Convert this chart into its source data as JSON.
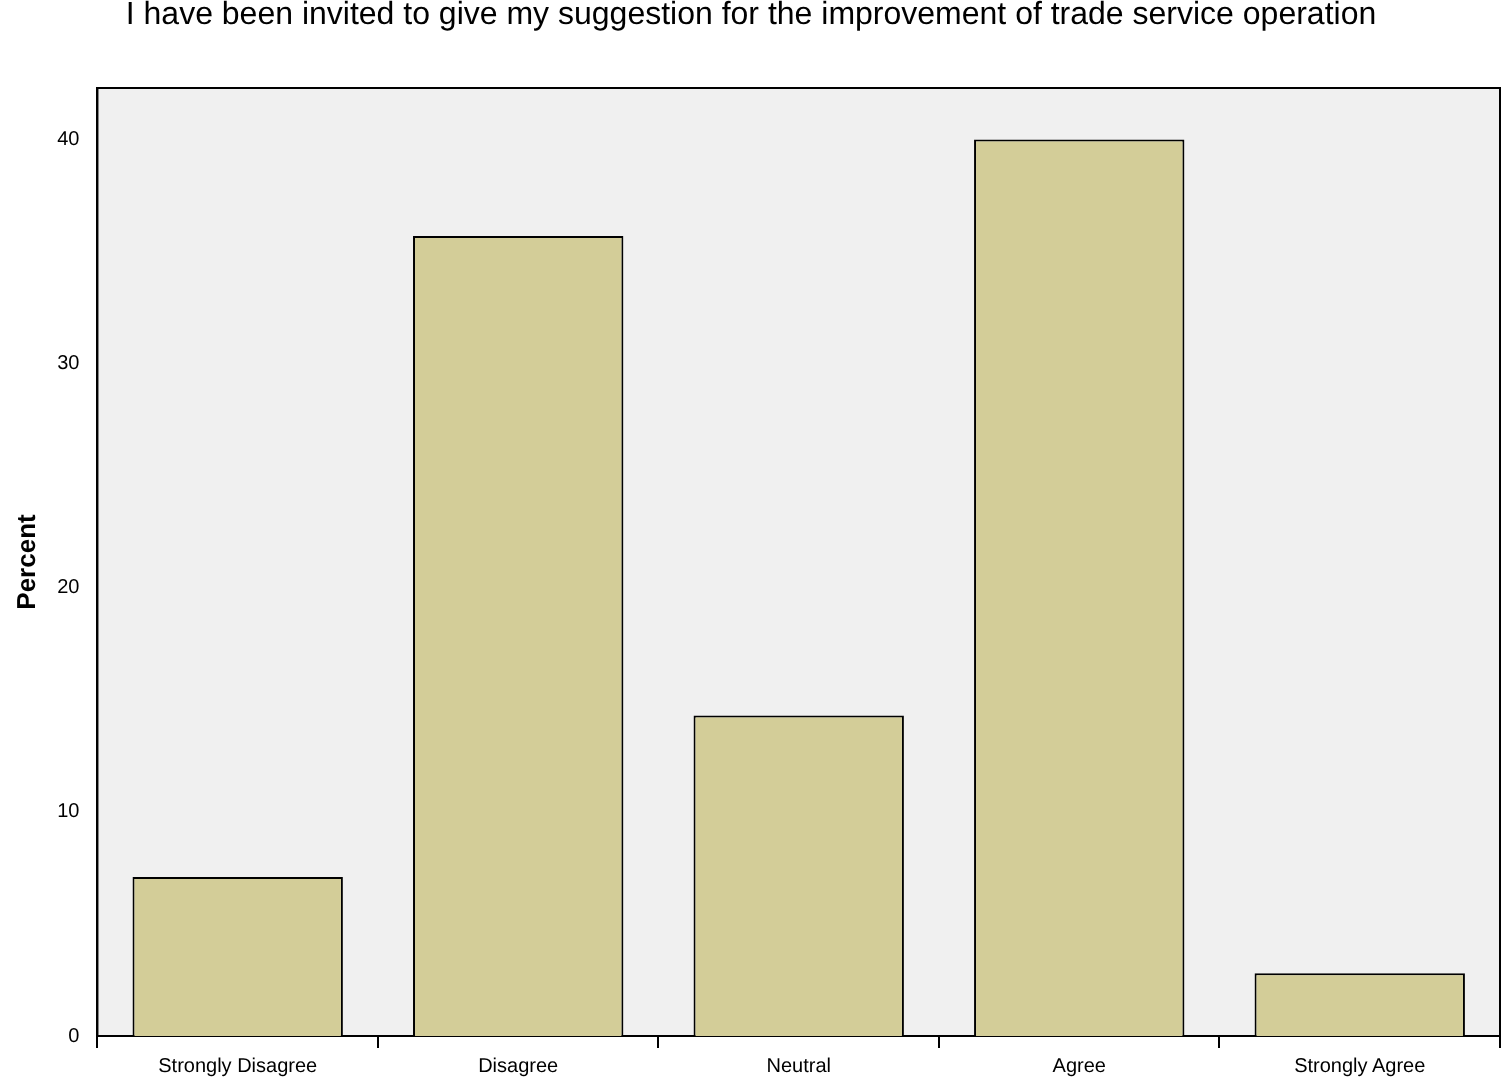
{
  "chart_data": {
    "type": "bar",
    "title": "I have been invited to give my suggestion for the improvement of trade service operation",
    "ylabel": "Percent",
    "categories": [
      "Strongly Disagree",
      "Disagree",
      "Neutral",
      "Agree",
      "Strongly Agree"
    ],
    "values": [
      7.1,
      35.7,
      14.3,
      40.0,
      2.8
    ],
    "color": "#d3cd98",
    "ylim": [
      0,
      42.3
    ],
    "yticks": [
      0,
      10,
      20,
      30,
      40
    ],
    "grid": false,
    "legend": false
  }
}
